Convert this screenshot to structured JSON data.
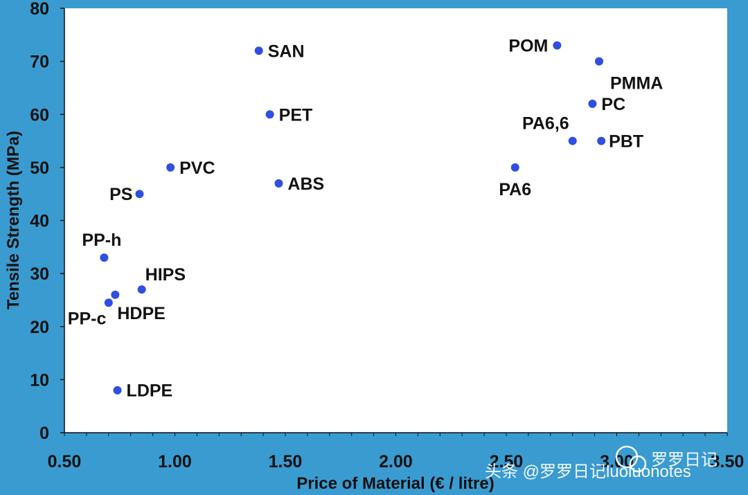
{
  "chart_data": {
    "type": "scatter",
    "xlabel": "Price of Material (€ / litre)",
    "ylabel": "Tensile Strength (MPa)",
    "xlim": [
      0.5,
      3.5
    ],
    "ylim": [
      0,
      80
    ],
    "x_ticks": [
      "0.50",
      "1.00",
      "1.50",
      "2.00",
      "2.50",
      "3.00",
      "3.50"
    ],
    "y_ticks": [
      "0",
      "10",
      "20",
      "30",
      "40",
      "50",
      "60",
      "70",
      "80"
    ],
    "grid": false,
    "marker_color": "#2f4fe0",
    "points": [
      {
        "label": "SAN",
        "x": 1.38,
        "y": 72
      },
      {
        "label": "POM",
        "x": 2.73,
        "y": 73
      },
      {
        "label": "PMMA",
        "x": 2.92,
        "y": 70
      },
      {
        "label": "PET",
        "x": 1.43,
        "y": 60
      },
      {
        "label": "PC",
        "x": 2.89,
        "y": 62
      },
      {
        "label": "PA6,6",
        "x": 2.8,
        "y": 55
      },
      {
        "label": "PBT",
        "x": 2.93,
        "y": 55
      },
      {
        "label": "PVC",
        "x": 0.98,
        "y": 50
      },
      {
        "label": "PA6",
        "x": 2.54,
        "y": 50
      },
      {
        "label": "ABS",
        "x": 1.47,
        "y": 47
      },
      {
        "label": "PS",
        "x": 0.84,
        "y": 45
      },
      {
        "label": "PP-h",
        "x": 0.68,
        "y": 33
      },
      {
        "label": "HIPS",
        "x": 0.85,
        "y": 27
      },
      {
        "label": "HDPE",
        "x": 0.73,
        "y": 26
      },
      {
        "label": "PP-c",
        "x": 0.7,
        "y": 24.5
      },
      {
        "label": "LDPE",
        "x": 0.74,
        "y": 8
      }
    ]
  },
  "watermark": {
    "left_text": "头条 @罗罗日记luoluonotes",
    "right_text": "罗罗日记"
  }
}
